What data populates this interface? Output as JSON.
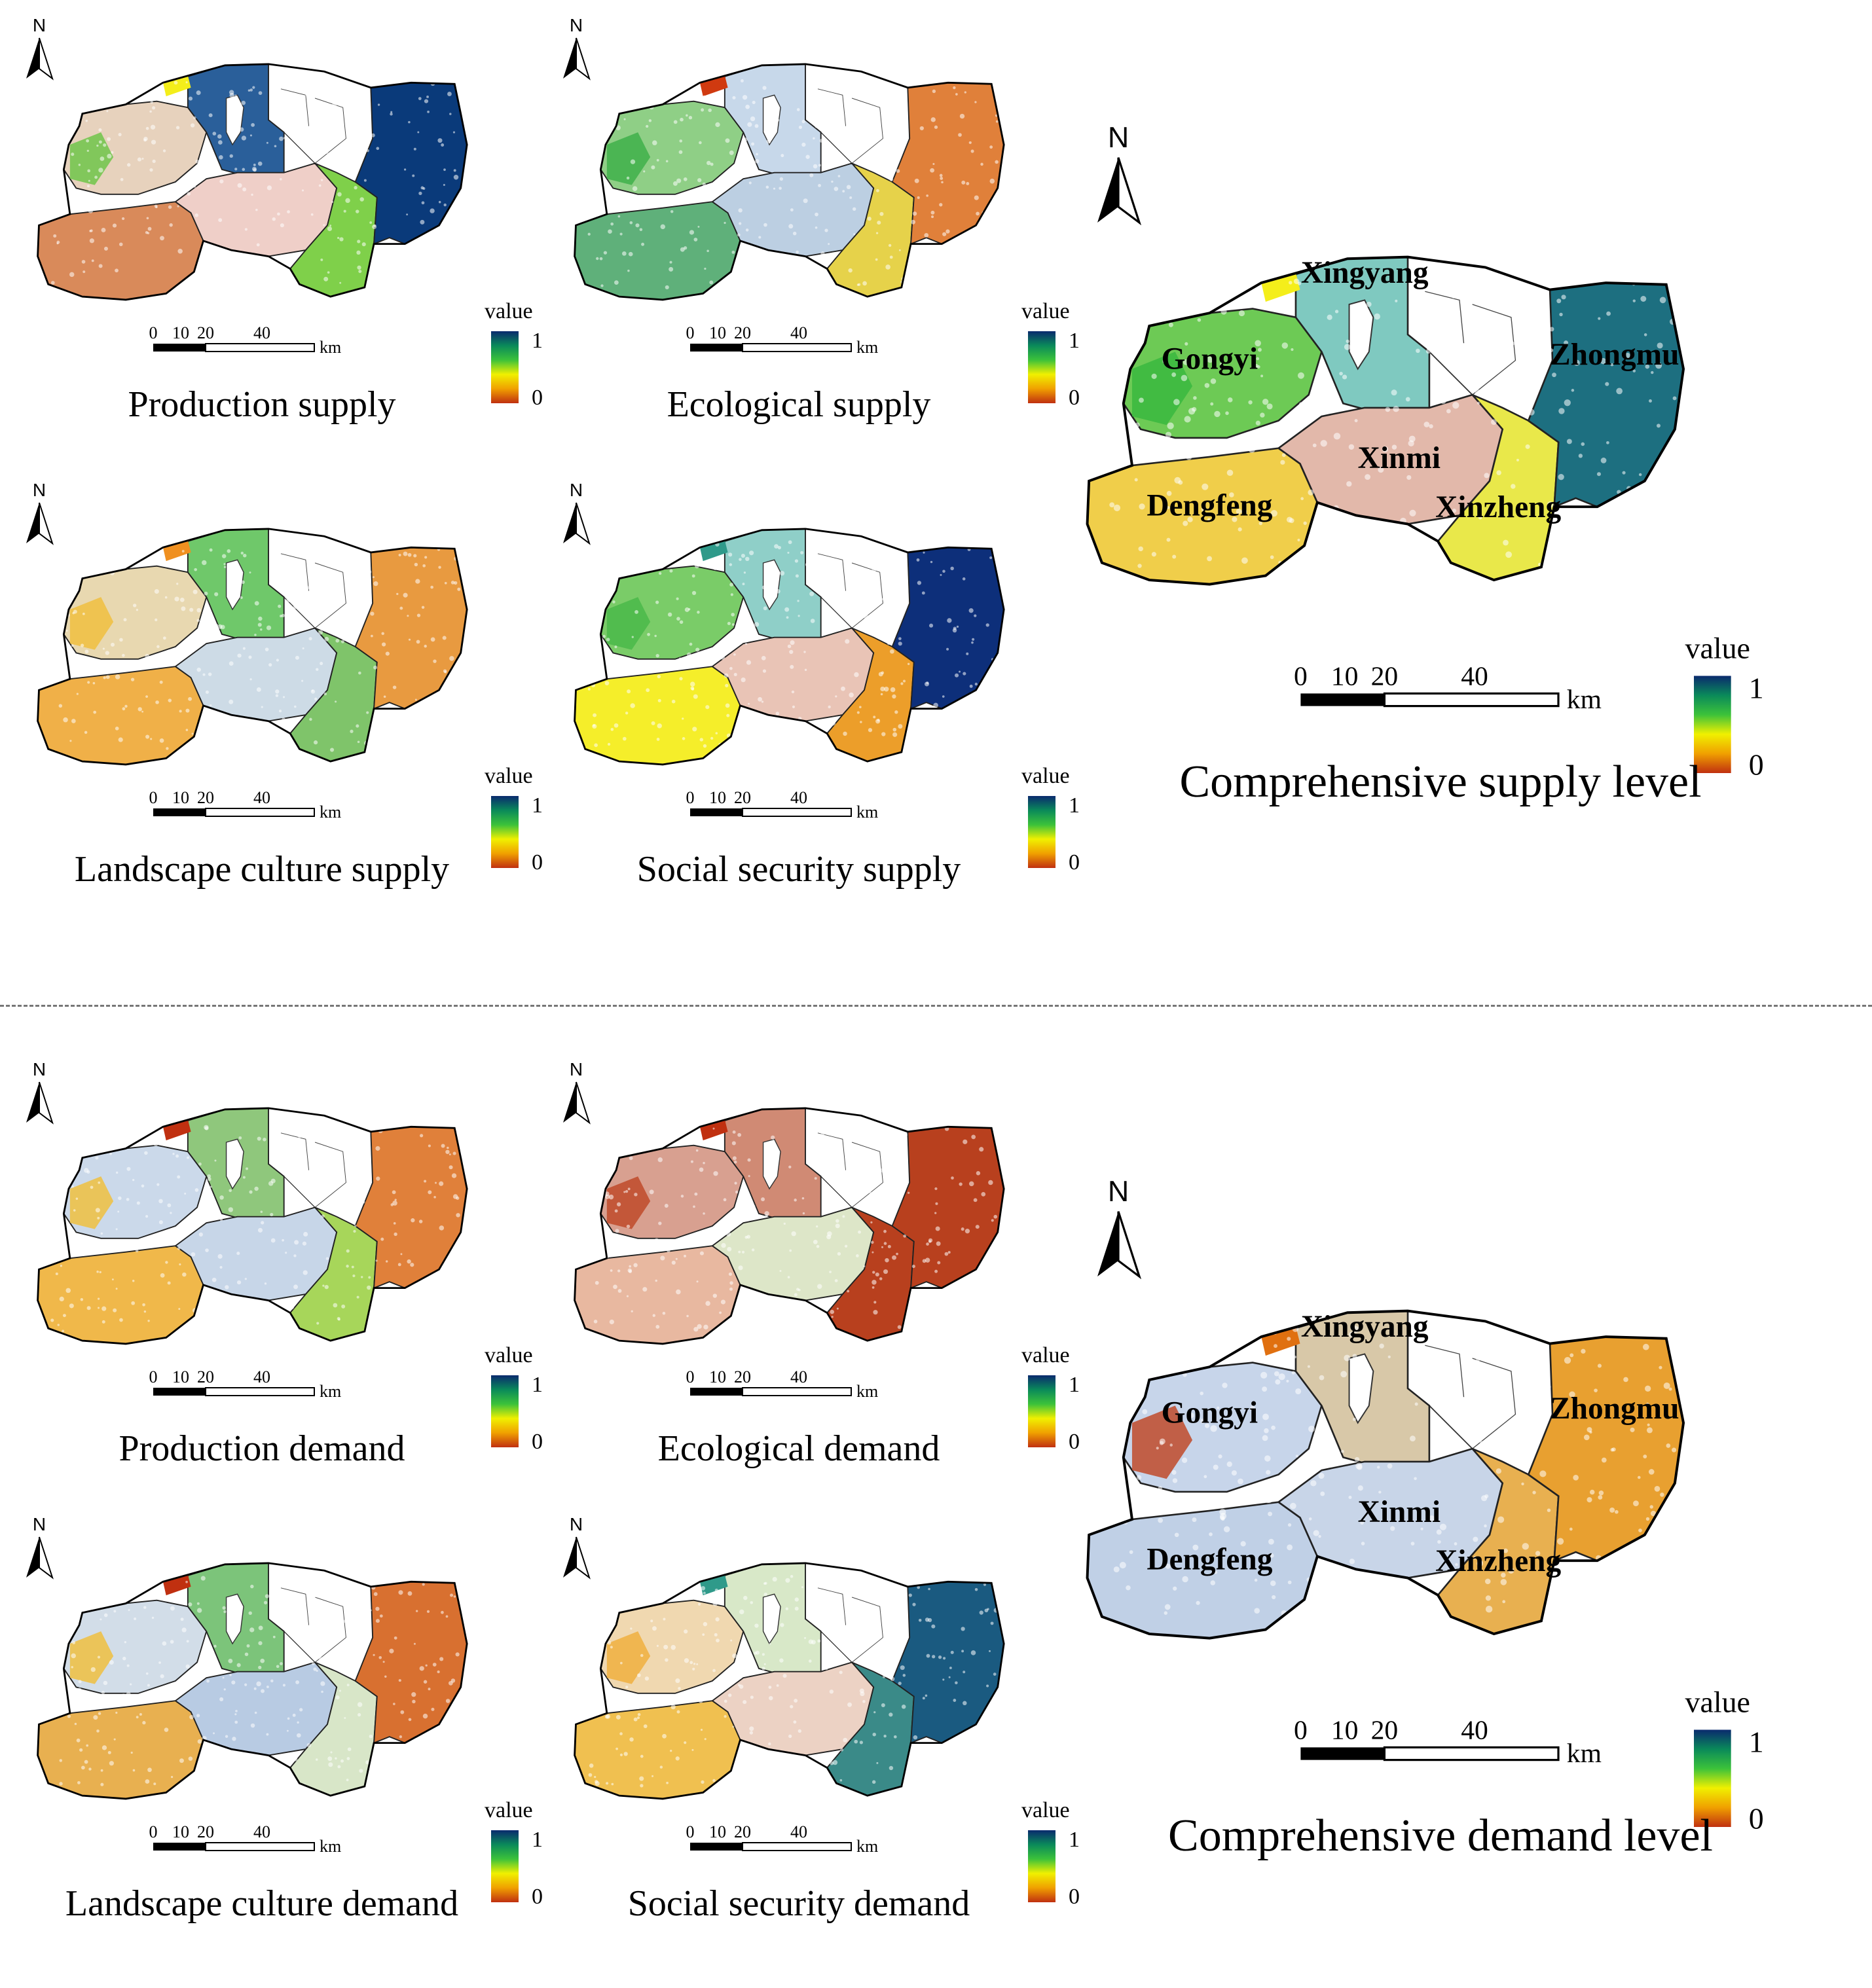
{
  "north_label": "N",
  "legend": {
    "title": "value",
    "max_label": "1",
    "min_label": "0",
    "gradient": [
      "#0a2a6e",
      "#0a8a5a",
      "#3cc23a",
      "#f0f000",
      "#f0a000",
      "#c03010"
    ]
  },
  "scalebar": {
    "ticks": [
      "0",
      "10",
      "20",
      "40"
    ],
    "unit": "km"
  },
  "county_names": {
    "xingyang": "Xingyang",
    "gongyi": "Gongyi",
    "zhongmu": "Zhongmu",
    "xinmi": "Xinmi",
    "dengfeng": "Dengfeng",
    "xinzheng": "Xinzheng"
  },
  "supply": {
    "production": {
      "caption": "Production supply"
    },
    "ecological": {
      "caption": "Ecological supply"
    },
    "landscape": {
      "caption": "Landscape culture supply"
    },
    "social": {
      "caption": "Social security supply"
    },
    "comprehensive": {
      "caption": "Comprehensive supply level"
    }
  },
  "demand": {
    "production": {
      "caption": "Production demand"
    },
    "ecological": {
      "caption": "Ecological demand"
    },
    "landscape": {
      "caption": "Landscape culture demand"
    },
    "social": {
      "caption": "Social security demand"
    },
    "comprehensive": {
      "caption": "Comprehensive demand level"
    }
  },
  "region_colors": {
    "supply_production": {
      "gongyi": "#e7d2bd",
      "gongyi_w": "#6fc64a",
      "xingyang": "#2a5f9a",
      "dengfeng": "#d98a5a",
      "xinmi": "#efcfc8",
      "xinzheng": "#7fd04a",
      "zhongmu": "#0a3a7a",
      "islet": "#f4ee1a"
    },
    "supply_ecological": {
      "gongyi": "#8fcf86",
      "gongyi_w": "#3fb04a",
      "xingyang": "#c7d8ea",
      "dengfeng": "#5fb07a",
      "xinmi": "#bccfe2",
      "xinzheng": "#e6d24a",
      "zhongmu": "#e0803a",
      "islet": "#d03a10"
    },
    "supply_landscape": {
      "gongyi": "#e8d8b0",
      "gongyi_w": "#f0c040",
      "xingyang": "#6fc86a",
      "dengfeng": "#f0b048",
      "xinmi": "#cddbe6",
      "xinzheng": "#7fc46a",
      "zhongmu": "#e89a40",
      "islet": "#f09020"
    },
    "supply_social": {
      "gongyi": "#7acc68",
      "gongyi_w": "#4ab84a",
      "xingyang": "#8fcfc8",
      "dengfeng": "#f5ee2a",
      "xinmi": "#e9c4b6",
      "xinzheng": "#ec9e2a",
      "zhongmu": "#0d2f7a",
      "islet": "#2f9a8a"
    },
    "supply_comp": {
      "gongyi": "#6dca55",
      "gongyi_w": "#3ab840",
      "xingyang": "#7fc9c0",
      "dengfeng": "#f0ce4a",
      "xinmi": "#e2b8aa",
      "xinzheng": "#e9e84a",
      "zhongmu": "#1d6f80",
      "islet": "#f4ee1a"
    },
    "demand_production": {
      "gongyi": "#cbd9ea",
      "gongyi_w": "#f0c040",
      "xingyang": "#8fc77c",
      "dengfeng": "#f0b84a",
      "xinmi": "#c7d6e8",
      "xinzheng": "#a7d65a",
      "zhongmu": "#e0803a",
      "islet": "#c03010"
    },
    "demand_ecological": {
      "gongyi": "#d8a090",
      "gongyi_w": "#c04a2a",
      "xingyang": "#d08a74",
      "dengfeng": "#e8b8a0",
      "xinmi": "#dde6c8",
      "xinzheng": "#b8401e",
      "zhongmu": "#b8401e",
      "islet": "#c03010"
    },
    "demand_landscape": {
      "gongyi": "#d2dde8",
      "gongyi_w": "#f0c040",
      "xingyang": "#7cc47a",
      "dengfeng": "#e8b050",
      "xinmi": "#b8cbe3",
      "xinzheng": "#d8e6c8",
      "zhongmu": "#d87030",
      "islet": "#c03010"
    },
    "demand_social": {
      "gongyi": "#f0d8b0",
      "gongyi_w": "#f0b040",
      "xingyang": "#d8e8c8",
      "dengfeng": "#f0c050",
      "xinmi": "#ecd2c4",
      "xinzheng": "#3a8a88",
      "zhongmu": "#1a5a80",
      "islet": "#2f9a8a"
    },
    "demand_comp": {
      "gongyi": "#c7d5ea",
      "gongyi_w": "#c04a2a",
      "xingyang": "#d8c8a8",
      "dengfeng": "#c0d0e6",
      "xinmi": "#c8d5e8",
      "xinzheng": "#e8b050",
      "zhongmu": "#e8a030",
      "islet": "#e07010"
    }
  }
}
